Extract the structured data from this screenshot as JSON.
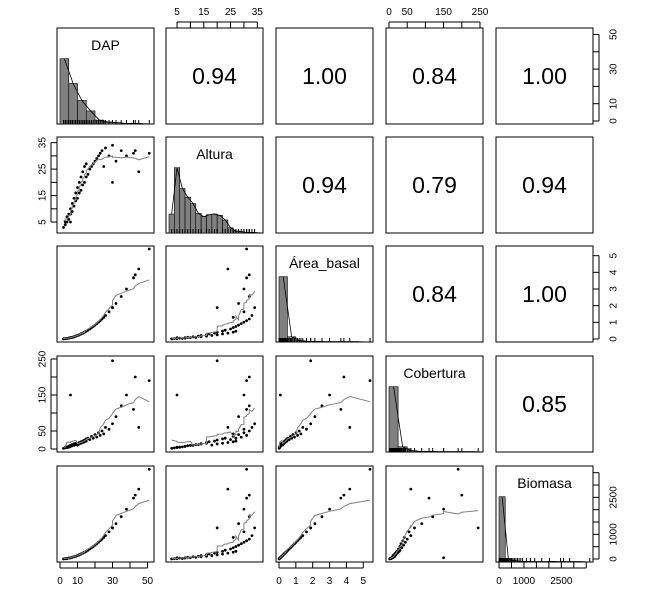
{
  "chart_data": {
    "type": "scatter",
    "title": "",
    "variables": [
      "DAP",
      "Altura",
      "Área_basal",
      "Cobertura",
      "Biomasa"
    ],
    "ranges": [
      [
        0,
        52
      ],
      [
        2,
        36
      ],
      [
        0,
        5.4
      ],
      [
        0,
        250
      ],
      [
        0,
        3650
      ]
    ],
    "ticks": [
      {
        "values": [
          0,
          10,
          20,
          30,
          40,
          50
        ],
        "labels": [
          "0",
          "10",
          "",
          "30",
          "",
          "50"
        ]
      },
      {
        "values": [
          5,
          10,
          15,
          20,
          25,
          30,
          35
        ],
        "labels": [
          "5",
          "",
          "15",
          "",
          "25",
          "",
          "35"
        ]
      },
      {
        "values": [
          0,
          1,
          2,
          3,
          4,
          5
        ],
        "labels": [
          "0",
          "1",
          "2",
          "3",
          "4",
          "5"
        ]
      },
      {
        "values": [
          0,
          50,
          100,
          150,
          200,
          250
        ],
        "labels": [
          "0",
          "50",
          "",
          "150",
          "",
          "250"
        ]
      },
      {
        "values": [
          0,
          500,
          1000,
          1500,
          2000,
          2500,
          3000,
          3500
        ],
        "labels": [
          "0",
          "",
          "1000",
          "",
          "",
          "2500",
          "",
          ""
        ]
      }
    ],
    "correlations": [
      {
        "row": 0,
        "col": 1,
        "value": "0.94"
      },
      {
        "row": 0,
        "col": 2,
        "value": "1.00"
      },
      {
        "row": 0,
        "col": 3,
        "value": "0.84"
      },
      {
        "row": 0,
        "col": 4,
        "value": "1.00"
      },
      {
        "row": 1,
        "col": 2,
        "value": "0.94"
      },
      {
        "row": 1,
        "col": 3,
        "value": "0.79"
      },
      {
        "row": 1,
        "col": 4,
        "value": "0.94"
      },
      {
        "row": 2,
        "col": 3,
        "value": "0.84"
      },
      {
        "row": 2,
        "col": 4,
        "value": "1.00"
      },
      {
        "row": 3,
        "col": 4,
        "value": "0.85"
      }
    ],
    "histograms": [
      {
        "start": 0,
        "width": 5,
        "density": [
          1.0,
          0.62,
          0.36,
          0.2,
          0.06,
          0.03,
          0.02,
          0.01,
          0.01,
          0.005
        ]
      },
      {
        "start": 2,
        "width": 2,
        "density": [
          0.29,
          1.0,
          0.68,
          0.55,
          0.45,
          0.3,
          0.25,
          0.28,
          0.29,
          0.27,
          0.2,
          0.08,
          0.03,
          0.02,
          0.01,
          0.01,
          0.005
        ]
      },
      {
        "start": 0,
        "width": 0.5,
        "density": [
          1.0,
          0.08,
          0.02,
          0.01,
          0.01,
          0.005,
          0.005,
          0.005,
          0.005,
          0.005
        ]
      },
      {
        "start": 0,
        "width": 25,
        "density": [
          1.0,
          0.08,
          0.02,
          0.01,
          0.01,
          0.005,
          0.005,
          0.005,
          0.005,
          0.005
        ]
      },
      {
        "start": 0,
        "width": 250,
        "density": [
          1.0,
          0.05,
          0.02,
          0.01,
          0.01,
          0.005,
          0.005,
          0.005,
          0.01,
          0.005,
          0.005,
          0.005,
          0.005,
          0.005
        ]
      }
    ],
    "observations": [
      [
        2,
        3,
        0.01,
        2,
        6
      ],
      [
        3,
        4,
        0.02,
        3,
        13
      ],
      [
        3,
        5,
        0.02,
        5,
        13
      ],
      [
        4,
        5,
        0.03,
        4,
        22
      ],
      [
        4,
        7,
        0.03,
        6,
        22
      ],
      [
        5,
        6,
        0.05,
        5,
        35
      ],
      [
        5,
        8,
        0.05,
        8,
        35
      ],
      [
        6,
        8,
        0.08,
        7,
        50
      ],
      [
        6,
        10,
        0.08,
        10,
        50
      ],
      [
        7,
        9,
        0.1,
        9,
        69
      ],
      [
        7,
        12,
        0.1,
        12,
        69
      ],
      [
        8,
        11,
        0.13,
        10,
        90
      ],
      [
        8,
        14,
        0.13,
        14,
        90
      ],
      [
        9,
        13,
        0.17,
        12,
        113
      ],
      [
        9,
        16,
        0.17,
        16,
        113
      ],
      [
        10,
        14,
        0.21,
        15,
        140
      ],
      [
        10,
        18,
        0.21,
        11,
        140
      ],
      [
        11,
        16,
        0.25,
        18,
        169
      ],
      [
        11,
        20,
        0.25,
        14,
        169
      ],
      [
        12,
        17,
        0.3,
        20,
        202
      ],
      [
        12,
        22,
        0.3,
        16,
        202
      ],
      [
        13,
        19,
        0.35,
        22,
        237
      ],
      [
        13,
        24,
        0.35,
        18,
        237
      ],
      [
        14,
        20,
        0.41,
        25,
        274
      ],
      [
        14,
        26,
        0.41,
        20,
        274
      ],
      [
        15,
        22,
        0.47,
        28,
        315
      ],
      [
        15,
        27,
        0.47,
        22,
        315
      ],
      [
        16,
        23,
        0.53,
        30,
        358
      ],
      [
        17,
        25,
        0.6,
        26,
        405
      ],
      [
        18,
        26,
        0.68,
        35,
        454
      ],
      [
        19,
        27,
        0.75,
        30,
        505
      ],
      [
        20,
        28,
        0.83,
        40,
        560
      ],
      [
        21,
        29,
        0.92,
        33,
        617
      ],
      [
        22,
        30,
        1.01,
        45,
        678
      ],
      [
        23,
        31,
        1.1,
        38,
        740
      ],
      [
        24,
        32,
        1.2,
        50,
        806
      ],
      [
        25,
        26,
        1.3,
        42,
        875
      ],
      [
        26,
        33,
        1.41,
        60,
        946
      ],
      [
        28,
        30,
        1.63,
        55,
        1098
      ],
      [
        30,
        34,
        1.88,
        70,
        1260
      ],
      [
        32,
        28,
        2.13,
        90,
        1434
      ],
      [
        35,
        32,
        2.55,
        120,
        1715
      ],
      [
        38,
        30,
        3.0,
        150,
        2022
      ],
      [
        42,
        31,
        3.67,
        110,
        2470
      ],
      [
        43,
        32,
        3.85,
        200,
        2590
      ],
      [
        45,
        24,
        4.2,
        60,
        2835
      ],
      [
        51,
        31,
        5.4,
        190,
        3640
      ],
      [
        6,
        5,
        0.08,
        150,
        50
      ],
      [
        30,
        20,
        1.88,
        245,
        1260
      ]
    ],
    "colors": {
      "points": "#000000",
      "smooth": "#808080",
      "bars": "#808080",
      "frame": "#000000"
    }
  }
}
